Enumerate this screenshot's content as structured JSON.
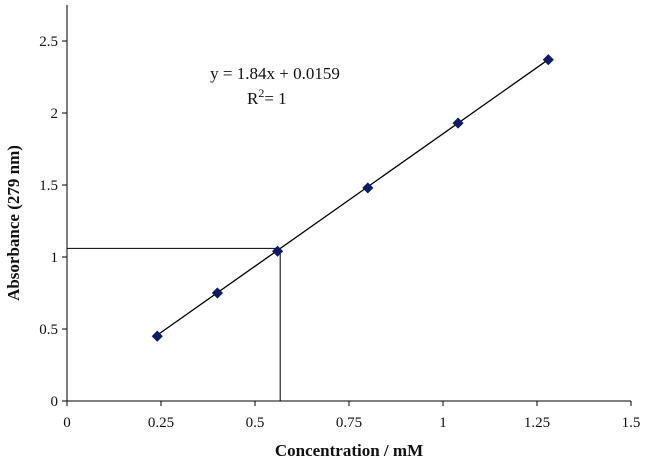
{
  "chart_data": {
    "type": "scatter",
    "xlabel": "Concentration / mM",
    "ylabel": "Absorbance (279 nm)",
    "xlim": [
      0,
      1.5
    ],
    "ylim": [
      0,
      2.75
    ],
    "x_ticks": [
      "0",
      "0.25",
      "0.5",
      "0.75",
      "1",
      "1.25",
      "1.5"
    ],
    "y_ticks": [
      "0",
      "0.5",
      "1",
      "1.5",
      "2",
      "2.5"
    ],
    "grid": false,
    "points": [
      {
        "x": 0.24,
        "y": 0.45
      },
      {
        "x": 0.4,
        "y": 0.75
      },
      {
        "x": 0.56,
        "y": 1.04
      },
      {
        "x": 0.8,
        "y": 1.48
      },
      {
        "x": 1.04,
        "y": 1.93
      },
      {
        "x": 1.28,
        "y": 2.37
      }
    ],
    "trendline": {
      "slope": 1.84,
      "intercept": 0.0159,
      "x_range": [
        0.24,
        1.28
      ]
    },
    "annotations": {
      "equation": "y = 1.84x + 0.0159",
      "r_squared_base": "R",
      "r_squared_exp": "2",
      "r_squared_value": "= 1"
    },
    "reference_point": {
      "x": 0.567,
      "y": 1.06
    },
    "colors": {
      "marker": "#0d1a6b",
      "line": "#000000",
      "axis": "#000000"
    }
  }
}
